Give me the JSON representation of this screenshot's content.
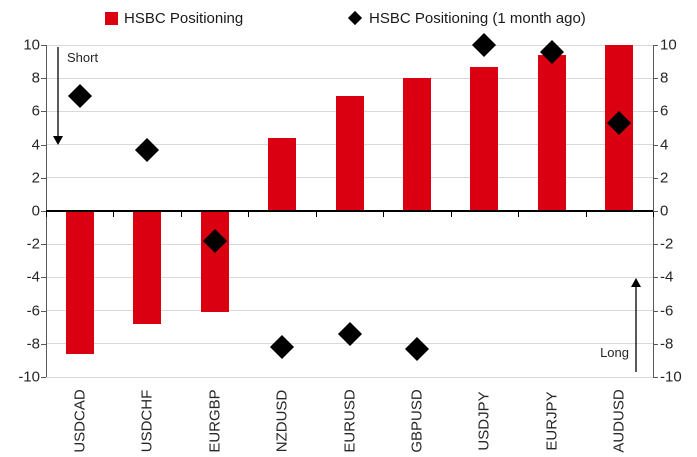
{
  "chart_data": {
    "type": "bar",
    "title": "",
    "categories": [
      "USDCAD",
      "USDCHF",
      "EURGBP",
      "NZDUSD",
      "EURUSD",
      "GBPUSD",
      "USDJPY",
      "EURJPY",
      "AUDUSD"
    ],
    "series": [
      {
        "name": "HSBC Positioning",
        "type": "bar",
        "color": "#DB0011",
        "values": [
          -8.6,
          -6.8,
          -6.1,
          4.4,
          6.9,
          8.0,
          8.7,
          9.4,
          10.0
        ]
      },
      {
        "name": "HSBC Positioning (1 month ago)",
        "type": "scatter",
        "marker": "diamond",
        "color": "#000000",
        "values": [
          6.9,
          3.7,
          -1.8,
          -8.2,
          -7.4,
          -8.3,
          10.0,
          9.6,
          5.3
        ]
      }
    ],
    "ylim": [
      -10,
      10
    ],
    "ytick_step": 2,
    "y_axis_sides": [
      "left",
      "right"
    ],
    "grid": true,
    "legend_position": "top",
    "annotations": [
      {
        "text": "Short",
        "arrow_direction": "down",
        "position": "top-left"
      },
      {
        "text": "Long",
        "arrow_direction": "up",
        "position": "bottom-right"
      }
    ]
  },
  "colors": {
    "bar_red": "#DB0011",
    "marker_black": "#000000",
    "gridline": "#D9D9D9",
    "axis": "#595959",
    "zero_line": "#000000",
    "text": "#262626"
  }
}
